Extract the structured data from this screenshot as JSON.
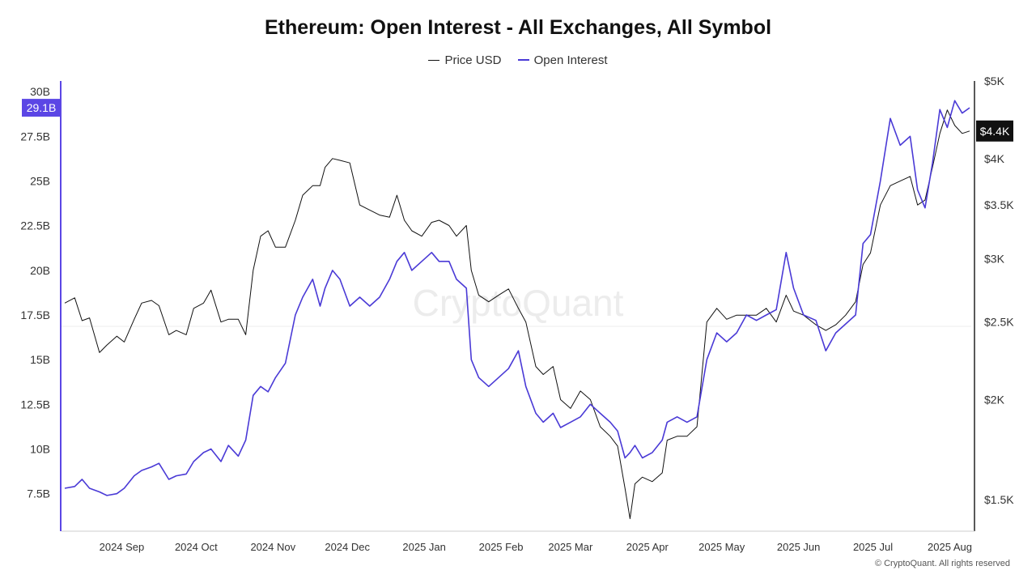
{
  "colors": {
    "price": "#111111",
    "open_interest": "#4a3ad6",
    "oi_badge_bg": "#5b46e5",
    "price_badge_bg": "#111111",
    "watermark": "#ececec",
    "axis": "#222222"
  },
  "watermark": "CryptoQuant",
  "copyright": "© CryptoQuant. All rights reserved",
  "chart_data": {
    "type": "line",
    "title": "Ethereum: Open Interest - All Exchanges, All Symbol",
    "legend": {
      "position": "top-center",
      "entries": [
        "Price USD",
        "Open Interest"
      ]
    },
    "grid": false,
    "x_ticks": [
      "2024 Sep",
      "2024 Oct",
      "2024 Nov",
      "2024 Dec",
      "2025 Jan",
      "2025 Feb",
      "2025 Mar",
      "2025 Apr",
      "2025 May",
      "2025 Jun",
      "2025 Jul",
      "2025 Aug"
    ],
    "x_range": [
      "2024-08-23",
      "2025-08-23"
    ],
    "y_left": {
      "label": "Open Interest",
      "ticks": [
        "7.5B",
        "10B",
        "12.5B",
        "15B",
        "17.5B",
        "20B",
        "22.5B",
        "25B",
        "27.5B",
        "30B"
      ],
      "range": [
        5.4,
        30.6
      ],
      "unit": "B"
    },
    "y_right": {
      "label": "Price USD",
      "scale": "log",
      "ticks": [
        "$1.5K",
        "$2K",
        "$2.5K",
        "$3K",
        "$3.5K",
        "$4K",
        "$5K"
      ],
      "tick_values": [
        1500,
        2000,
        2500,
        3000,
        3500,
        4000,
        5000
      ],
      "range": [
        1370,
        5000
      ]
    },
    "current_values": {
      "open_interest": "29.1B",
      "price": "$4.4K"
    },
    "series": [
      {
        "name": "Price USD",
        "axis": "right",
        "x": [
          "2024-08-23",
          "2024-08-27",
          "2024-08-30",
          "2024-09-02",
          "2024-09-06",
          "2024-09-09",
          "2024-09-13",
          "2024-09-16",
          "2024-09-20",
          "2024-09-23",
          "2024-09-27",
          "2024-09-30",
          "2024-10-04",
          "2024-10-07",
          "2024-10-11",
          "2024-10-14",
          "2024-10-18",
          "2024-10-21",
          "2024-10-25",
          "2024-10-28",
          "2024-11-01",
          "2024-11-04",
          "2024-11-07",
          "2024-11-10",
          "2024-11-13",
          "2024-11-16",
          "2024-11-20",
          "2024-11-24",
          "2024-11-27",
          "2024-12-01",
          "2024-12-04",
          "2024-12-06",
          "2024-12-09",
          "2024-12-12",
          "2024-12-16",
          "2024-12-20",
          "2024-12-24",
          "2024-12-28",
          "2025-01-01",
          "2025-01-04",
          "2025-01-07",
          "2025-01-10",
          "2025-01-14",
          "2025-01-18",
          "2025-01-21",
          "2025-01-25",
          "2025-01-28",
          "2025-02-01",
          "2025-02-03",
          "2025-02-06",
          "2025-02-10",
          "2025-02-14",
          "2025-02-18",
          "2025-02-22",
          "2025-02-25",
          "2025-03-01",
          "2025-03-04",
          "2025-03-08",
          "2025-03-11",
          "2025-03-15",
          "2025-03-19",
          "2025-03-23",
          "2025-03-27",
          "2025-03-31",
          "2025-04-03",
          "2025-04-06",
          "2025-04-08",
          "2025-04-10",
          "2025-04-13",
          "2025-04-17",
          "2025-04-21",
          "2025-04-23",
          "2025-04-27",
          "2025-05-01",
          "2025-05-05",
          "2025-05-09",
          "2025-05-13",
          "2025-05-17",
          "2025-05-21",
          "2025-05-25",
          "2025-05-29",
          "2025-06-02",
          "2025-06-06",
          "2025-06-10",
          "2025-06-13",
          "2025-06-17",
          "2025-06-22",
          "2025-06-26",
          "2025-06-30",
          "2025-07-04",
          "2025-07-08",
          "2025-07-11",
          "2025-07-14",
          "2025-07-18",
          "2025-07-22",
          "2025-07-26",
          "2025-07-30",
          "2025-08-02",
          "2025-08-05",
          "2025-08-08",
          "2025-08-11",
          "2025-08-14",
          "2025-08-17",
          "2025-08-20",
          "2025-08-23"
        ],
        "values": [
          2640,
          2680,
          2510,
          2530,
          2290,
          2340,
          2400,
          2360,
          2520,
          2640,
          2660,
          2620,
          2410,
          2440,
          2410,
          2600,
          2640,
          2740,
          2500,
          2520,
          2520,
          2410,
          2900,
          3200,
          3250,
          3100,
          3100,
          3350,
          3600,
          3700,
          3700,
          3900,
          4000,
          3980,
          3950,
          3500,
          3450,
          3400,
          3380,
          3600,
          3350,
          3250,
          3200,
          3330,
          3350,
          3300,
          3200,
          3300,
          2900,
          2700,
          2650,
          2700,
          2750,
          2600,
          2500,
          2200,
          2150,
          2200,
          2000,
          1950,
          2050,
          2000,
          1850,
          1800,
          1750,
          1550,
          1420,
          1570,
          1600,
          1580,
          1620,
          1780,
          1800,
          1800,
          1850,
          2500,
          2600,
          2520,
          2550,
          2550,
          2550,
          2600,
          2500,
          2700,
          2580,
          2550,
          2480,
          2440,
          2480,
          2550,
          2650,
          2950,
          3050,
          3500,
          3700,
          3750,
          3800,
          3500,
          3550,
          3900,
          4300,
          4600,
          4400,
          4300,
          4330
        ]
      },
      {
        "name": "Open Interest",
        "axis": "left",
        "x": [
          "2024-08-23",
          "2024-08-27",
          "2024-08-30",
          "2024-09-02",
          "2024-09-06",
          "2024-09-09",
          "2024-09-13",
          "2024-09-16",
          "2024-09-20",
          "2024-09-23",
          "2024-09-27",
          "2024-09-30",
          "2024-10-04",
          "2024-10-07",
          "2024-10-11",
          "2024-10-14",
          "2024-10-18",
          "2024-10-21",
          "2024-10-25",
          "2024-10-28",
          "2024-11-01",
          "2024-11-04",
          "2024-11-07",
          "2024-11-10",
          "2024-11-13",
          "2024-11-16",
          "2024-11-20",
          "2024-11-24",
          "2024-11-27",
          "2024-12-01",
          "2024-12-04",
          "2024-12-06",
          "2024-12-09",
          "2024-12-12",
          "2024-12-16",
          "2024-12-20",
          "2024-12-24",
          "2024-12-28",
          "2025-01-01",
          "2025-01-04",
          "2025-01-07",
          "2025-01-10",
          "2025-01-14",
          "2025-01-18",
          "2025-01-21",
          "2025-01-25",
          "2025-01-28",
          "2025-02-01",
          "2025-02-03",
          "2025-02-06",
          "2025-02-10",
          "2025-02-14",
          "2025-02-18",
          "2025-02-22",
          "2025-02-25",
          "2025-03-01",
          "2025-03-04",
          "2025-03-08",
          "2025-03-11",
          "2025-03-15",
          "2025-03-19",
          "2025-03-23",
          "2025-03-27",
          "2025-03-31",
          "2025-04-03",
          "2025-04-06",
          "2025-04-08",
          "2025-04-10",
          "2025-04-13",
          "2025-04-17",
          "2025-04-21",
          "2025-04-23",
          "2025-04-27",
          "2025-05-01",
          "2025-05-05",
          "2025-05-09",
          "2025-05-13",
          "2025-05-17",
          "2025-05-21",
          "2025-05-25",
          "2025-05-29",
          "2025-06-02",
          "2025-06-06",
          "2025-06-10",
          "2025-06-13",
          "2025-06-17",
          "2025-06-22",
          "2025-06-26",
          "2025-06-30",
          "2025-07-04",
          "2025-07-08",
          "2025-07-11",
          "2025-07-14",
          "2025-07-18",
          "2025-07-22",
          "2025-07-26",
          "2025-07-30",
          "2025-08-02",
          "2025-08-05",
          "2025-08-08",
          "2025-08-11",
          "2025-08-14",
          "2025-08-17",
          "2025-08-20",
          "2025-08-23"
        ],
        "values": [
          7.8,
          7.9,
          8.3,
          7.8,
          7.6,
          7.4,
          7.5,
          7.8,
          8.5,
          8.8,
          9.0,
          9.2,
          8.3,
          8.5,
          8.6,
          9.3,
          9.8,
          10.0,
          9.3,
          10.2,
          9.6,
          10.5,
          13.0,
          13.5,
          13.2,
          14.0,
          14.8,
          17.5,
          18.5,
          19.5,
          18.0,
          19.0,
          20.0,
          19.5,
          18.0,
          18.5,
          18.0,
          18.5,
          19.5,
          20.5,
          21.0,
          20.0,
          20.5,
          21.0,
          20.5,
          20.5,
          19.5,
          19.0,
          15.0,
          14.0,
          13.5,
          14.0,
          14.5,
          15.5,
          13.5,
          12.0,
          11.5,
          12.0,
          11.2,
          11.5,
          11.8,
          12.5,
          12.0,
          11.5,
          11.0,
          9.5,
          9.8,
          10.2,
          9.5,
          9.8,
          10.5,
          11.5,
          11.8,
          11.5,
          11.8,
          15.0,
          16.5,
          16.0,
          16.5,
          17.5,
          17.2,
          17.5,
          17.8,
          21.0,
          19.0,
          17.5,
          17.2,
          15.5,
          16.5,
          17.0,
          17.5,
          21.5,
          22.0,
          25.0,
          28.5,
          27.0,
          27.5,
          24.5,
          23.5,
          26.0,
          29.0,
          28.0,
          29.5,
          28.8,
          29.1
        ]
      }
    ]
  }
}
